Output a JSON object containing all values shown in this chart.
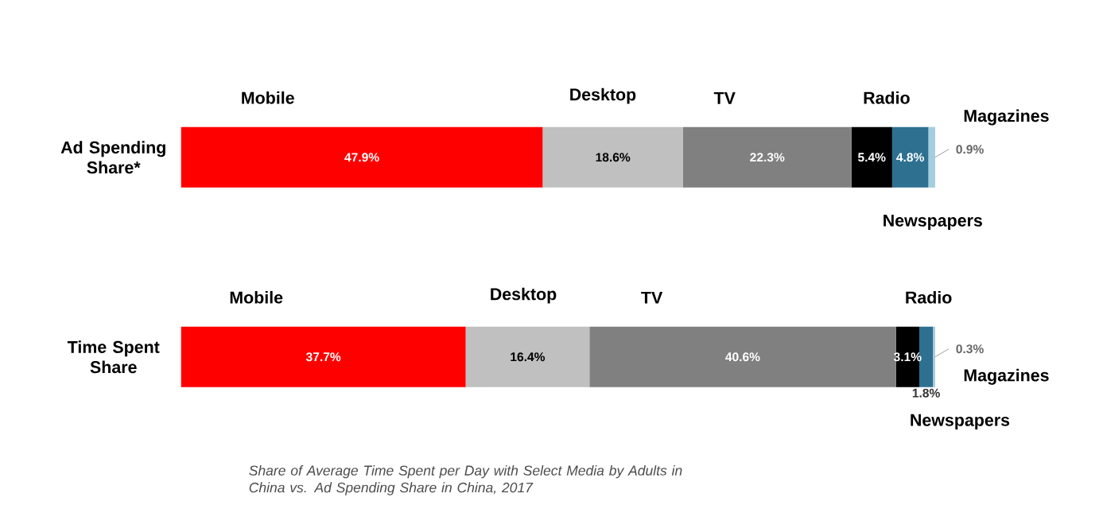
{
  "chart_data": {
    "type": "bar",
    "orientation": "horizontal",
    "stacked": true,
    "legend": false,
    "tick_labels": "y",
    "xlim": [
      0,
      100
    ],
    "categories": [
      "Ad Spending Share*",
      "Time Spent Share"
    ],
    "series": [
      {
        "name": "Mobile",
        "color": "#ff0000",
        "values": [
          47.9,
          37.7
        ],
        "value_labels": [
          "47.9%",
          "37.7%"
        ]
      },
      {
        "name": "Desktop",
        "color": "#c0c0c0",
        "values": [
          18.6,
          16.4
        ],
        "value_labels": [
          "18.6%",
          "16.4%"
        ]
      },
      {
        "name": "TV",
        "color": "#808080",
        "values": [
          22.3,
          40.6
        ],
        "value_labels": [
          "22.3%",
          "40.6%"
        ]
      },
      {
        "name": "Radio",
        "color": "#000000",
        "values": [
          5.4,
          3.1
        ],
        "value_labels": [
          "5.4%",
          "3.1%"
        ]
      },
      {
        "name": "Newspapers",
        "color": "#2e7090",
        "values": [
          4.8,
          1.8
        ],
        "value_labels": [
          "4.8%",
          "1.8%"
        ]
      },
      {
        "name": "Magazines",
        "color": "#a6cce0",
        "values": [
          0.9,
          0.3
        ],
        "value_labels": [
          "0.9%",
          "0.3%"
        ]
      }
    ],
    "annotations": [
      "Share of Average Time Spent per Day with Select Media by Adults in China vs. Ad Spending Share in China, 2017"
    ]
  }
}
